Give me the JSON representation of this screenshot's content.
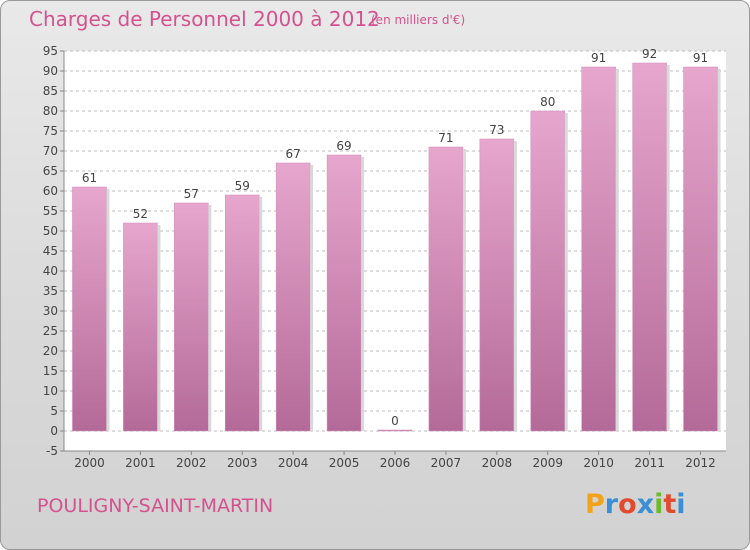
{
  "header": {
    "title": "Charges de Personnel 2000 à 2012",
    "subtitle": "(en milliers d'€)"
  },
  "footer": {
    "commune": "POULIGNY-SAINT-MARTIN",
    "logo": "Proxiti"
  },
  "colors": {
    "accent": "#d4528e",
    "bar_top": "#e6a6cd",
    "bar_bottom": "#b46a98",
    "logo_letters": [
      "#f2a31b",
      "#3b8fd4",
      "#e04b2f",
      "#3b8fd4",
      "#6cbb2d",
      "#e04b2f",
      "#3b8fd4"
    ]
  },
  "chart_data": {
    "type": "bar",
    "categories": [
      "2000",
      "2001",
      "2002",
      "2003",
      "2004",
      "2005",
      "2006",
      "2007",
      "2008",
      "2009",
      "2010",
      "2011",
      "2012"
    ],
    "values": [
      61,
      52,
      57,
      59,
      67,
      69,
      0,
      71,
      73,
      80,
      91,
      92,
      91
    ],
    "data_labels": [
      "61",
      "52",
      "57",
      "59",
      "67",
      "69",
      "0",
      "71",
      "73",
      "80",
      "91",
      "92",
      "91"
    ],
    "title": "Charges de Personnel 2000 à 2012",
    "subtitle": "(en milliers d'€)",
    "xlabel": "",
    "ylabel": "",
    "ylim": [
      -5,
      95
    ],
    "yticks": [
      "-5",
      "0",
      "5",
      "10",
      "15",
      "20",
      "25",
      "30",
      "35",
      "40",
      "45",
      "50",
      "55",
      "60",
      "65",
      "70",
      "75",
      "80",
      "85",
      "90",
      "95"
    ],
    "grid": true,
    "legend": "none"
  }
}
